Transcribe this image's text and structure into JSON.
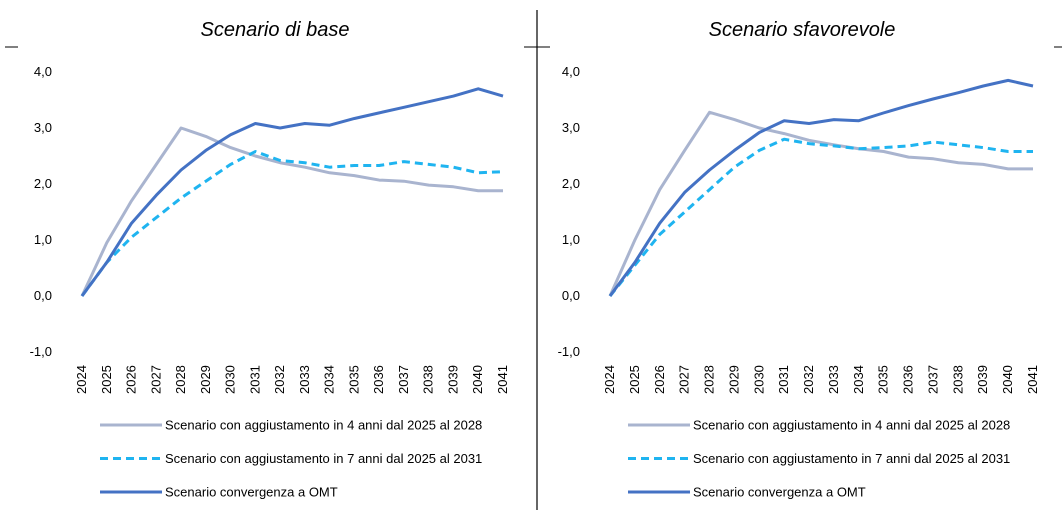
{
  "chart_data": [
    {
      "type": "line",
      "title": "Scenario di base",
      "categories": [
        "2024",
        "2025",
        "2026",
        "2027",
        "2028",
        "2029",
        "2030",
        "2031",
        "2032",
        "2033",
        "2034",
        "2035",
        "2036",
        "2037",
        "2038",
        "2039",
        "2040",
        "2041"
      ],
      "ylim": [
        -1,
        4
      ],
      "yticks": [
        {
          "value": -1,
          "label": "-1,0"
        },
        {
          "value": 0,
          "label": "0,0"
        },
        {
          "value": 1,
          "label": "1,0"
        },
        {
          "value": 2,
          "label": "2,0"
        },
        {
          "value": 3,
          "label": "3,0"
        },
        {
          "value": 4,
          "label": "4,0"
        }
      ],
      "grid": false,
      "series": [
        {
          "name": "Scenario con aggiustamento in 4 anni dal 2025 al 2028",
          "color": "#a9b4cf",
          "dashed": false,
          "values": [
            0,
            0.95,
            1.7,
            2.35,
            3.0,
            2.85,
            2.65,
            2.5,
            2.38,
            2.3,
            2.2,
            2.15,
            2.07,
            2.05,
            1.98,
            1.95,
            1.88,
            1.88
          ]
        },
        {
          "name": "Scenario con aggiustamento in 7 anni dal 2025 al 2031",
          "color": "#1fb4f0",
          "dashed": true,
          "values": [
            0,
            0.6,
            1.05,
            1.4,
            1.75,
            2.05,
            2.35,
            2.58,
            2.42,
            2.38,
            2.3,
            2.33,
            2.33,
            2.4,
            2.35,
            2.3,
            2.2,
            2.22
          ]
        },
        {
          "name": "Scenario convergenza a OMT",
          "color": "#4472c4",
          "dashed": false,
          "values": [
            0,
            0.6,
            1.3,
            1.8,
            2.25,
            2.6,
            2.88,
            3.08,
            3.0,
            3.08,
            3.05,
            3.17,
            3.27,
            3.37,
            3.47,
            3.57,
            3.7,
            3.57
          ]
        }
      ]
    },
    {
      "type": "line",
      "title": "Scenario sfavorevole",
      "categories": [
        "2024",
        "2025",
        "2026",
        "2027",
        "2028",
        "2029",
        "2030",
        "2031",
        "2032",
        "2033",
        "2034",
        "2035",
        "2036",
        "2037",
        "2038",
        "2039",
        "2040",
        "2041"
      ],
      "ylim": [
        -1,
        4
      ],
      "yticks": [
        {
          "value": -1,
          "label": "-1,0"
        },
        {
          "value": 0,
          "label": "0,0"
        },
        {
          "value": 1,
          "label": "1,0"
        },
        {
          "value": 2,
          "label": "2,0"
        },
        {
          "value": 3,
          "label": "3,0"
        },
        {
          "value": 4,
          "label": "4,0"
        }
      ],
      "grid": false,
      "series": [
        {
          "name": "Scenario con aggiustamento in 4 anni dal 2025 al 2028",
          "color": "#a9b4cf",
          "dashed": false,
          "values": [
            0,
            1.0,
            1.9,
            2.6,
            3.28,
            3.15,
            3.0,
            2.9,
            2.78,
            2.7,
            2.63,
            2.58,
            2.48,
            2.45,
            2.38,
            2.35,
            2.27,
            2.27
          ]
        },
        {
          "name": "Scenario con aggiustamento in 7 anni dal 2025 al 2031",
          "color": "#1fb4f0",
          "dashed": true,
          "values": [
            0,
            0.55,
            1.1,
            1.5,
            1.9,
            2.3,
            2.6,
            2.8,
            2.72,
            2.68,
            2.63,
            2.65,
            2.68,
            2.75,
            2.7,
            2.65,
            2.58,
            2.58
          ]
        },
        {
          "name": "Scenario convergenza a OMT",
          "color": "#4472c4",
          "dashed": false,
          "values": [
            0,
            0.6,
            1.3,
            1.85,
            2.25,
            2.6,
            2.92,
            3.13,
            3.08,
            3.15,
            3.13,
            3.27,
            3.4,
            3.52,
            3.63,
            3.75,
            3.85,
            3.75
          ]
        }
      ]
    }
  ]
}
